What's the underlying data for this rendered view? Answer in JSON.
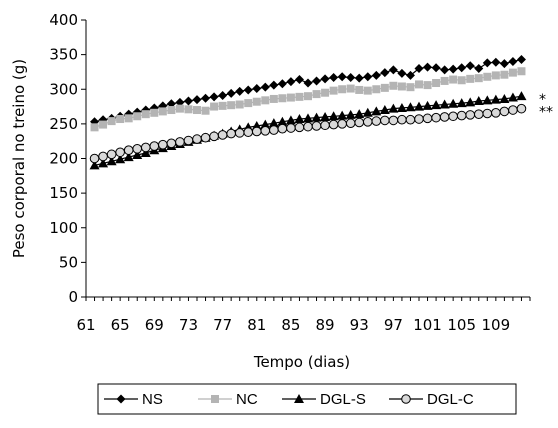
{
  "chart_data": {
    "type": "line",
    "xlabel": "Tempo (dias)",
    "ylabel": "Peso corporal no treino (g)",
    "xlim": [
      61,
      113
    ],
    "ylim": [
      0,
      400
    ],
    "x_ticks": [
      61,
      65,
      69,
      73,
      77,
      81,
      85,
      89,
      93,
      97,
      101,
      105,
      109
    ],
    "y_ticks": [
      0,
      50,
      100,
      150,
      200,
      250,
      300,
      350,
      400
    ],
    "grid": false,
    "legend_position": "bottom",
    "annotations": [
      {
        "text": "*",
        "series": "DGL-S"
      },
      {
        "text": "**",
        "series": "DGL-C"
      }
    ],
    "x": [
      62,
      63,
      64,
      65,
      66,
      67,
      68,
      69,
      70,
      71,
      72,
      73,
      74,
      75,
      76,
      77,
      78,
      79,
      80,
      81,
      82,
      83,
      84,
      85,
      86,
      87,
      88,
      89,
      90,
      91,
      92,
      93,
      94,
      95,
      96,
      97,
      98,
      99,
      100,
      101,
      102,
      103,
      104,
      105,
      106,
      107,
      108,
      109,
      110,
      111,
      112
    ],
    "series": [
      {
        "name": "NS",
        "marker": "diamond",
        "color": "#000000",
        "values": [
          253,
          256,
          258,
          261,
          264,
          267,
          270,
          273,
          276,
          279,
          281,
          283,
          285,
          287,
          289,
          291,
          294,
          297,
          299,
          301,
          303,
          306,
          308,
          311,
          314,
          309,
          312,
          315,
          317,
          318,
          317,
          316,
          318,
          320,
          324,
          328,
          323,
          320,
          330,
          332,
          331,
          328,
          329,
          331,
          334,
          330,
          338,
          339,
          337,
          340,
          343
        ]
      },
      {
        "name": "NC",
        "marker": "square",
        "color": "#b4b4b4",
        "values": [
          245,
          249,
          254,
          257,
          258,
          261,
          264,
          266,
          268,
          270,
          272,
          271,
          270,
          269,
          275,
          276,
          277,
          278,
          280,
          282,
          284,
          286,
          287,
          288,
          289,
          290,
          293,
          295,
          298,
          300,
          301,
          299,
          298,
          300,
          302,
          305,
          304,
          303,
          307,
          306,
          309,
          312,
          314,
          313,
          315,
          316,
          318,
          320,
          321,
          324,
          326
        ]
      },
      {
        "name": "DGL-S",
        "marker": "triangle",
        "color": "#000000",
        "values": [
          190,
          193,
          196,
          199,
          202,
          205,
          208,
          212,
          215,
          218,
          221,
          224,
          227,
          230,
          233,
          236,
          239,
          242,
          245,
          247,
          249,
          251,
          253,
          255,
          257,
          258,
          259,
          260,
          261,
          262,
          263,
          264,
          266,
          268,
          270,
          272,
          273,
          274,
          275,
          276,
          277,
          278,
          279,
          280,
          281,
          283,
          284,
          285,
          286,
          288,
          290
        ]
      },
      {
        "name": "DGL-C",
        "marker": "circle",
        "color": "#000000",
        "values": [
          200,
          203,
          206,
          209,
          212,
          214,
          216,
          218,
          220,
          222,
          224,
          226,
          228,
          230,
          232,
          234,
          236,
          237,
          238,
          239,
          240,
          241,
          243,
          244,
          245,
          246,
          247,
          248,
          249,
          250,
          251,
          252,
          253,
          254,
          255,
          255,
          256,
          256,
          257,
          258,
          259,
          260,
          261,
          262,
          263,
          264,
          265,
          266,
          268,
          270,
          272
        ]
      }
    ]
  }
}
